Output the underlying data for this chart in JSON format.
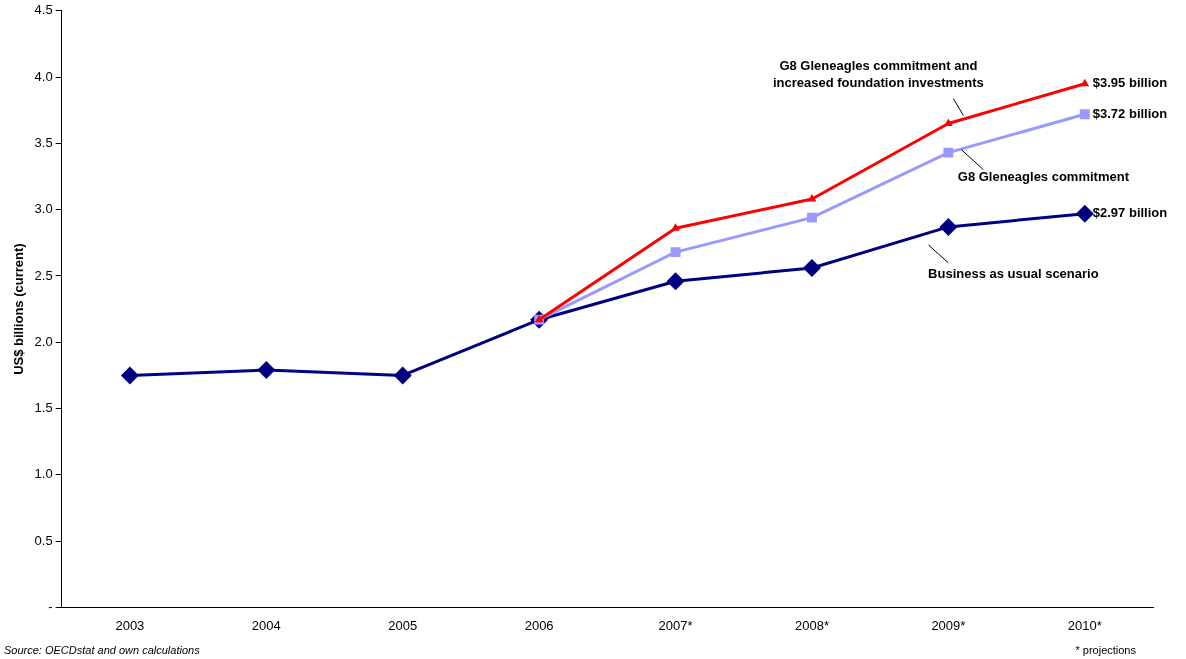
{
  "chart_data": {
    "type": "line",
    "ylabel": "US$ billions (current)",
    "categories": [
      "2003",
      "2004",
      "2005",
      "2006",
      "2007*",
      "2008*",
      "2009*",
      "2010*"
    ],
    "series": [
      {
        "name": "Business as usual scenario",
        "color": "#000080",
        "marker": "diamond",
        "values": [
          1.75,
          1.79,
          1.75,
          2.17,
          2.46,
          2.56,
          2.87,
          2.97
        ],
        "value_labels": [
          null,
          null,
          null,
          null,
          null,
          null,
          null,
          "$2.97 billion"
        ]
      },
      {
        "name": "G8 Gleneagles commitment",
        "color": "#9999ff",
        "marker": "square",
        "values": [
          null,
          null,
          null,
          2.17,
          2.68,
          2.94,
          3.43,
          3.72
        ],
        "value_labels": [
          null,
          null,
          null,
          null,
          null,
          null,
          null,
          "$3.72 billion"
        ]
      },
      {
        "name": "G8 Gleneagles commitment and increased foundation investments",
        "color": "#ff0000",
        "marker": "triangle",
        "values": [
          null,
          null,
          null,
          2.17,
          2.86,
          3.08,
          3.65,
          3.95
        ],
        "value_labels": [
          null,
          null,
          null,
          null,
          null,
          null,
          null,
          "$3.95 billion"
        ]
      }
    ],
    "ylim": [
      0,
      4.5
    ],
    "yticks": [
      {
        "value": 0,
        "label": "-"
      },
      0.5,
      {
        "value": 1,
        "label": "1.0"
      },
      1.5,
      {
        "value": 2,
        "label": "2.0"
      },
      2.5,
      {
        "value": 3,
        "label": "3.0"
      },
      3.5,
      {
        "value": 4,
        "label": "4.0"
      },
      4.5
    ],
    "grid": false,
    "legend": false,
    "line_style": "solid",
    "annotations": [
      "Source: OECDstat and own calculations",
      "* projections"
    ]
  }
}
